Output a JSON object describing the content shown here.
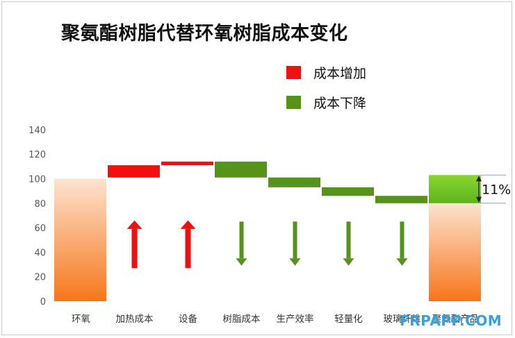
{
  "title": "聚氨酯树脂代替环氧树脂成本变化",
  "watermark": "FRPAPP.COM",
  "legend": [
    {
      "label": "成本增加",
      "color": "#f01010"
    },
    {
      "label": "成本下降",
      "color": "#55931a"
    }
  ],
  "colors": {
    "increase": "#f01010",
    "decrease": "#55931a",
    "total_top": "#fde3cf",
    "total_bottom": "#f6761a",
    "saving_top": "#88d631",
    "saving_bottom": "#5fb41c",
    "axis_text": "#555555"
  },
  "annotation": {
    "label": "11%"
  },
  "chart_data": {
    "type": "waterfall",
    "title": "聚氨酯树脂代替环氧树脂成本变化",
    "xlabel": "",
    "ylabel": "",
    "ylim": [
      0,
      140
    ],
    "yticks": [
      0,
      20,
      40,
      60,
      80,
      100,
      120,
      140
    ],
    "grid": false,
    "legend_position": "top-right",
    "categories": [
      "环氧",
      "加热成本",
      "设备",
      "树脂成本",
      "生产效率",
      "轻量化",
      "玻璃纤维",
      "聚氨酯产品"
    ],
    "steps": [
      {
        "category": "环氧",
        "kind": "total",
        "value": 100
      },
      {
        "category": "加热成本",
        "kind": "increase",
        "from": 101,
        "to": 111
      },
      {
        "category": "设备",
        "kind": "increase",
        "from": 111,
        "to": 114
      },
      {
        "category": "树脂成本",
        "kind": "decrease",
        "from": 114,
        "to": 101
      },
      {
        "category": "生产效率",
        "kind": "decrease",
        "from": 101,
        "to": 93
      },
      {
        "category": "轻量化",
        "kind": "decrease",
        "from": 93,
        "to": 86
      },
      {
        "category": "玻璃纤维",
        "kind": "decrease",
        "from": 86,
        "to": 80
      },
      {
        "category": "聚氨酯产品",
        "kind": "total",
        "value": 80,
        "saving_to": 103
      }
    ],
    "annotations": [
      {
        "text": "11%",
        "between": [
          80,
          103
        ]
      }
    ]
  }
}
